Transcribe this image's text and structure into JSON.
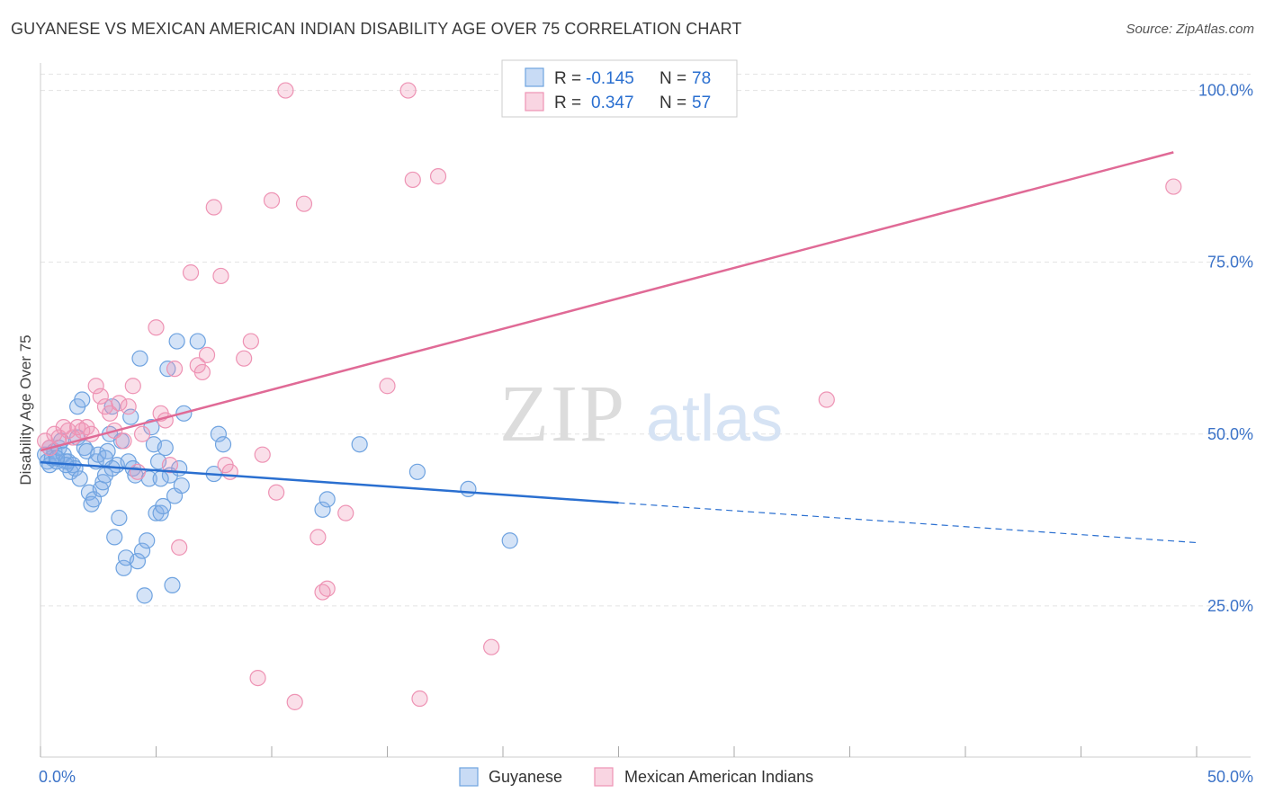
{
  "chart_data": {
    "type": "scatter",
    "title": "GUYANESE VS MEXICAN AMERICAN INDIAN DISABILITY AGE OVER 75 CORRELATION CHART",
    "source": "Source: ZipAtlas.com",
    "ylabel": "Disability Age Over 75",
    "xlabel": "",
    "xlim": [
      0,
      50
    ],
    "ylim": [
      3,
      104
    ],
    "x_tick_labels": [
      "0.0%",
      "50.0%"
    ],
    "y_ticks": [
      25,
      50,
      75,
      100
    ],
    "y_tick_labels": [
      "25.0%",
      "50.0%",
      "75.0%",
      "100.0%"
    ],
    "grid": true,
    "legend_position": "top-center",
    "watermark": {
      "zip": "ZIP",
      "atlas": "atlas"
    },
    "stats": [
      {
        "r_label": "R = ",
        "r": "-0.145",
        "n_label": "N = ",
        "n": "78"
      },
      {
        "r_label": "R = ",
        "r": "0.347",
        "n_label": "N = ",
        "n": "57"
      }
    ],
    "series": [
      {
        "name": "Guyanese",
        "color": "#6fa3e0",
        "fill": "rgba(132,176,232,0.35)",
        "line_color": "#2a6fd0",
        "trend": {
          "x0": 0,
          "y0": 45.9,
          "x1": 25,
          "y1": 40.0,
          "dash_to_x": 50,
          "dash_to_y": 34.2
        },
        "points": [
          [
            0.2,
            47
          ],
          [
            0.3,
            46
          ],
          [
            0.4,
            45.5
          ],
          [
            0.5,
            46.5
          ],
          [
            0.6,
            47.5
          ],
          [
            0.7,
            46
          ],
          [
            0.8,
            48
          ],
          [
            0.9,
            49
          ],
          [
            1.0,
            47
          ],
          [
            1.1,
            46
          ],
          [
            1.2,
            46
          ],
          [
            1.3,
            44.5
          ],
          [
            1.4,
            45.5
          ],
          [
            1.5,
            45
          ],
          [
            1.6,
            54
          ],
          [
            1.7,
            43.5
          ],
          [
            1.8,
            55
          ],
          [
            1.9,
            48
          ],
          [
            2.0,
            47.5
          ],
          [
            2.1,
            41.5
          ],
          [
            2.2,
            39.8
          ],
          [
            2.3,
            40.5
          ],
          [
            2.4,
            46
          ],
          [
            2.5,
            47
          ],
          [
            2.6,
            42
          ],
          [
            2.7,
            43
          ],
          [
            2.8,
            44
          ],
          [
            2.9,
            47.5
          ],
          [
            3.0,
            50
          ],
          [
            3.1,
            54
          ],
          [
            3.2,
            35
          ],
          [
            3.3,
            45.5
          ],
          [
            3.4,
            37.8
          ],
          [
            3.5,
            49
          ],
          [
            3.6,
            30.5
          ],
          [
            3.7,
            32
          ],
          [
            3.8,
            46
          ],
          [
            3.9,
            52.5
          ],
          [
            4.0,
            45
          ],
          [
            4.1,
            44
          ],
          [
            4.2,
            31.5
          ],
          [
            4.3,
            61
          ],
          [
            4.4,
            33
          ],
          [
            4.5,
            26.5
          ],
          [
            4.6,
            34.5
          ],
          [
            4.7,
            43.5
          ],
          [
            4.8,
            51
          ],
          [
            4.9,
            48.5
          ],
          [
            5.0,
            38.5
          ],
          [
            5.1,
            46
          ],
          [
            5.2,
            38.5
          ],
          [
            5.3,
            39.5
          ],
          [
            5.4,
            48
          ],
          [
            5.5,
            59.5
          ],
          [
            5.6,
            44
          ],
          [
            5.7,
            28
          ],
          [
            5.8,
            41
          ],
          [
            5.9,
            63.5
          ],
          [
            6.0,
            45
          ],
          [
            6.1,
            42.5
          ],
          [
            6.2,
            53
          ],
          [
            6.8,
            63.5
          ],
          [
            7.5,
            44.2
          ],
          [
            7.7,
            50
          ],
          [
            7.9,
            48.5
          ],
          [
            12.2,
            39
          ],
          [
            12.4,
            40.5
          ],
          [
            13.8,
            48.5
          ],
          [
            16.3,
            44.5
          ],
          [
            18.5,
            42
          ],
          [
            20.3,
            34.5
          ],
          [
            0.4,
            48
          ],
          [
            1.6,
            49.5
          ],
          [
            2.8,
            46.5
          ],
          [
            5.2,
            43.5
          ],
          [
            3.1,
            45
          ],
          [
            1.1,
            45.5
          ],
          [
            0.7,
            46.5
          ]
        ]
      },
      {
        "name": "Mexican American Indians",
        "color": "#ee93b4",
        "fill": "rgba(240,150,183,0.30)",
        "line_color": "#e06a96",
        "trend": {
          "x0": 0,
          "y0": 47.6,
          "x1": 49,
          "y1": 91.0
        },
        "points": [
          [
            0.2,
            49
          ],
          [
            0.4,
            48
          ],
          [
            0.6,
            50
          ],
          [
            0.8,
            49.5
          ],
          [
            1.0,
            51
          ],
          [
            1.2,
            50.5
          ],
          [
            1.4,
            49.5
          ],
          [
            1.6,
            51
          ],
          [
            1.8,
            50.5
          ],
          [
            2.0,
            51
          ],
          [
            2.2,
            50
          ],
          [
            2.4,
            57
          ],
          [
            2.6,
            55.5
          ],
          [
            2.8,
            54
          ],
          [
            3.0,
            53
          ],
          [
            3.2,
            50.5
          ],
          [
            3.4,
            54.5
          ],
          [
            3.6,
            49
          ],
          [
            3.8,
            54
          ],
          [
            4.0,
            57
          ],
          [
            4.2,
            44.5
          ],
          [
            4.4,
            50
          ],
          [
            5.0,
            65.5
          ],
          [
            5.2,
            53
          ],
          [
            5.4,
            52
          ],
          [
            5.6,
            45.5
          ],
          [
            5.8,
            59.5
          ],
          [
            6.0,
            33.5
          ],
          [
            6.5,
            73.5
          ],
          [
            6.8,
            60
          ],
          [
            7.0,
            59
          ],
          [
            7.2,
            61.5
          ],
          [
            7.5,
            83
          ],
          [
            7.8,
            73
          ],
          [
            8.0,
            45.5
          ],
          [
            8.2,
            44.5
          ],
          [
            8.8,
            61
          ],
          [
            9.1,
            63.5
          ],
          [
            9.4,
            14.5
          ],
          [
            9.6,
            47
          ],
          [
            10.0,
            84
          ],
          [
            10.2,
            41.5
          ],
          [
            10.6,
            100
          ],
          [
            11.0,
            11
          ],
          [
            11.4,
            83.5
          ],
          [
            12.0,
            35
          ],
          [
            12.2,
            27
          ],
          [
            12.4,
            27.5
          ],
          [
            13.2,
            38.5
          ],
          [
            15.0,
            57
          ],
          [
            15.9,
            100
          ],
          [
            16.1,
            87
          ],
          [
            16.4,
            11.5
          ],
          [
            17.2,
            87.5
          ],
          [
            19.5,
            19
          ],
          [
            34.0,
            55
          ],
          [
            49.0,
            86
          ]
        ]
      }
    ]
  }
}
